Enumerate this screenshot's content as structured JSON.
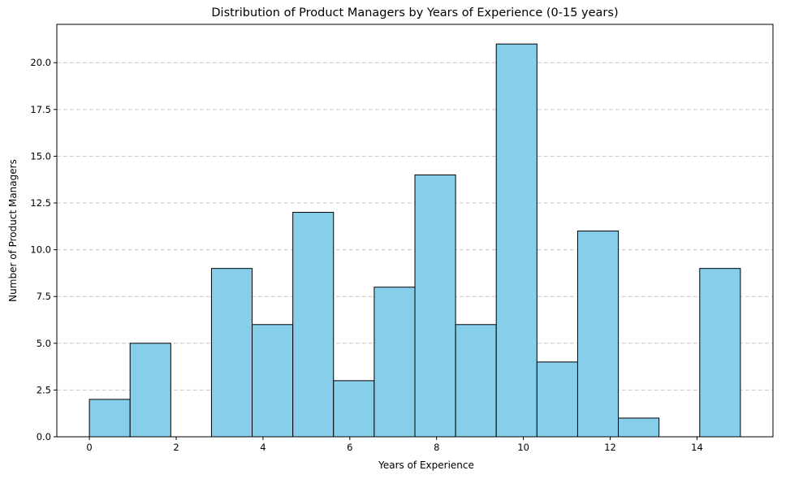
{
  "chart_data": {
    "type": "bar",
    "title": "Distribution of Product Managers by Years of Experience (0-15 years)",
    "xlabel": "Years of Experience",
    "ylabel": "Number of Product Managers",
    "bin_edges": [
      0,
      0.9375,
      1.875,
      2.8125,
      3.75,
      4.6875,
      5.625,
      6.5625,
      7.5,
      8.4375,
      9.375,
      10.3125,
      11.25,
      12.1875,
      13.125,
      14.0625,
      15
    ],
    "values": [
      2,
      5,
      0,
      9,
      6,
      12,
      3,
      8,
      14,
      6,
      21,
      4,
      11,
      1,
      0,
      9
    ],
    "xlim": [
      -0.75,
      15.75
    ],
    "ylim": [
      0,
      22.05
    ],
    "xticks": [
      0,
      2,
      4,
      6,
      8,
      10,
      12,
      14
    ],
    "xtick_labels": [
      "0",
      "2",
      "4",
      "6",
      "8",
      "10",
      "12",
      "14"
    ],
    "yticks": [
      0,
      2.5,
      5,
      7.5,
      10,
      12.5,
      15,
      17.5,
      20
    ],
    "ytick_labels": [
      "0.0",
      "2.5",
      "5.0",
      "7.5",
      "10.0",
      "12.5",
      "15.0",
      "17.5",
      "20.0"
    ],
    "grid": "y-dashed",
    "legend": "none",
    "colors": {
      "bar_fill": "#87ceeb",
      "bar_edge": "#000000",
      "grid": "#c8c8c8"
    }
  }
}
